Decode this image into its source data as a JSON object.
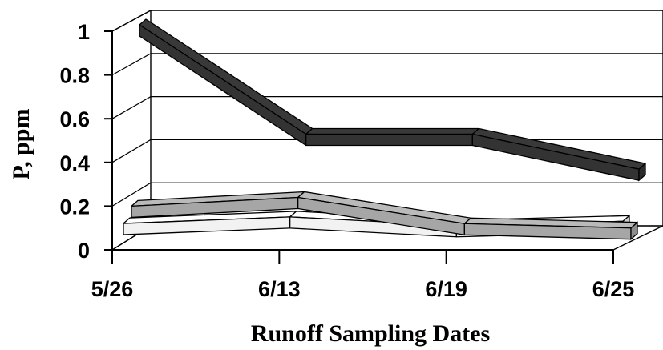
{
  "chart_data": {
    "type": "line",
    "style": "3d-ribbon",
    "xlabel": "Runoff Sampling Dates",
    "ylabel": "P, ppm",
    "categories": [
      "5/26",
      "6/13",
      "6/19",
      "6/25"
    ],
    "ylim": [
      0,
      1
    ],
    "yticks": [
      "0",
      "0.2",
      "0.4",
      "0.6",
      "0.8",
      "1"
    ],
    "grid": true,
    "legend": "none",
    "series": [
      {
        "values": [
          0.15,
          0.18,
          0.14,
          0.16
        ],
        "color": "#f2f2f2"
      },
      {
        "values": [
          0.2,
          0.24,
          0.12,
          0.1
        ],
        "color": "#a6a6a6"
      },
      {
        "values": [
          1.0,
          0.5,
          0.5,
          0.34
        ],
        "color": "#333333"
      }
    ]
  }
}
